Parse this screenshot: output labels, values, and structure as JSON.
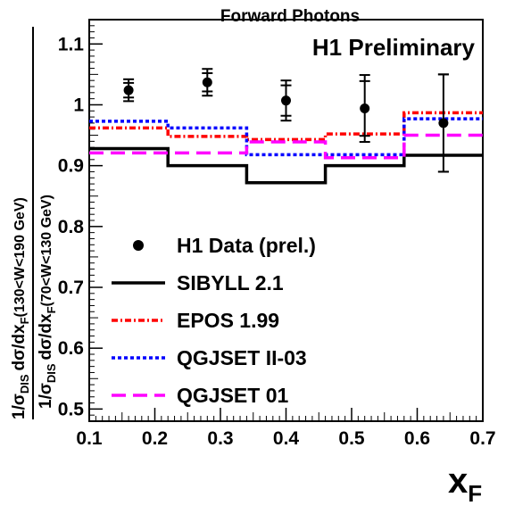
{
  "chart_data": {
    "type": "line",
    "title": "Forward Photons",
    "annotation": "H1 Preliminary",
    "xlabel": "x",
    "xlabel_sub": "F",
    "ylabel": {
      "numerator": {
        "pre": "1/σ",
        "pre_sub": "DIS",
        "frac": "dσ/dx",
        "frac_sub": "F",
        "range": "(130<W<190 GeV)"
      },
      "denominator": {
        "pre": "1/σ",
        "pre_sub": "DIS",
        "frac": "dσ/dx",
        "frac_sub": "F",
        "range": "(70<W<130 GeV)"
      }
    },
    "xlim": [
      0.1,
      0.7
    ],
    "ylim": [
      0.48,
      1.14
    ],
    "x_ticks": [
      "0.1",
      "0.2",
      "0.3",
      "0.4",
      "0.5",
      "0.6",
      "0.7"
    ],
    "y_ticks": [
      "0.5",
      "0.6",
      "0.7",
      "0.8",
      "0.9",
      "1",
      "1.1"
    ],
    "grid": false,
    "legend_position": "center-left",
    "data_points": {
      "name": "H1 Data (prel.)",
      "points": [
        {
          "x": 0.16,
          "y": 1.024,
          "stat": 0.012,
          "total": 0.018
        },
        {
          "x": 0.28,
          "y": 1.037,
          "stat": 0.015,
          "total": 0.022
        },
        {
          "x": 0.4,
          "y": 1.007,
          "stat": 0.025,
          "total": 0.033
        },
        {
          "x": 0.52,
          "y": 0.994,
          "stat": 0.045,
          "total": 0.055
        },
        {
          "x": 0.64,
          "y": 0.97,
          "stat": 0.08,
          "total": 0.08
        }
      ]
    },
    "bin_edges": [
      0.1,
      0.22,
      0.34,
      0.46,
      0.58,
      0.7
    ],
    "series": [
      {
        "name": "SIBYLL 2.1",
        "color": "#000000",
        "style": "solid",
        "values": [
          0.928,
          0.9,
          0.872,
          0.9,
          0.917
        ]
      },
      {
        "name": "EPOS 1.99",
        "color": "#ff0000",
        "style": "dashdot",
        "values": [
          0.962,
          0.948,
          0.943,
          0.952,
          0.987
        ]
      },
      {
        "name": "QGJSET II-03",
        "color": "#0000ff",
        "style": "dotted",
        "values": [
          0.973,
          0.962,
          0.918,
          0.918,
          0.977
        ]
      },
      {
        "name": "QGJSET 01",
        "color": "#ff00ff",
        "style": "dashed",
        "values": [
          0.921,
          0.921,
          0.939,
          0.913,
          0.95
        ]
      }
    ]
  }
}
